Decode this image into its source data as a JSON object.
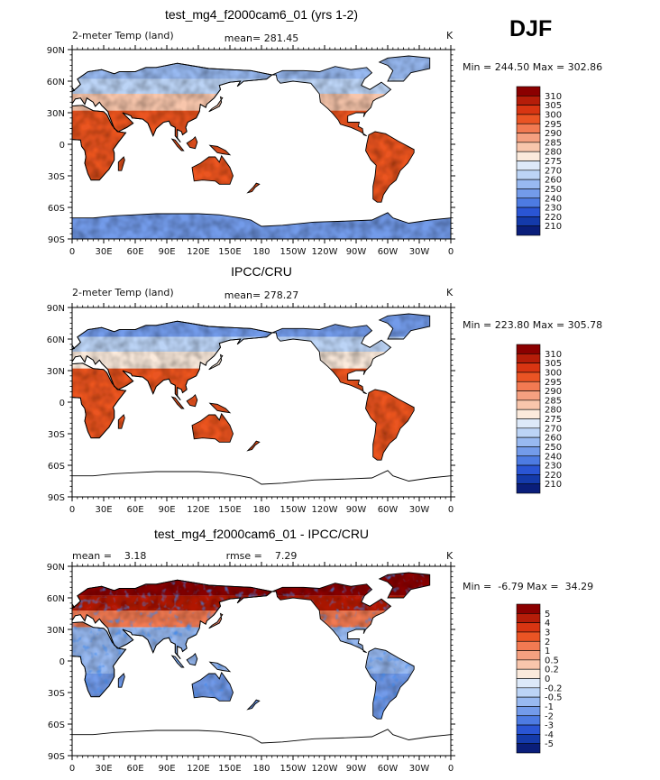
{
  "season": "DJF",
  "chart_data": [
    {
      "type": "heatmap",
      "title": "test_mg4_f2000cam6_01 (yrs 1-2)",
      "left_label": "2-meter Temp (land)",
      "center_label": "mean= 281.45",
      "right_label": "K",
      "stats_label": "Min = 244.50 Max = 302.86",
      "mean": 281.45,
      "min": 244.5,
      "max": 302.86,
      "units": "K",
      "x_ticks": [
        "0",
        "30E",
        "60E",
        "90E",
        "120E",
        "150E",
        "180",
        "150W",
        "120W",
        "90W",
        "60W",
        "30W",
        "0"
      ],
      "y_ticks": [
        "90N",
        "60N",
        "30N",
        "0",
        "30S",
        "60S",
        "90S"
      ],
      "xlim": [
        0,
        360
      ],
      "ylim": [
        -90,
        90
      ],
      "colorbar": {
        "labels": [
          "310",
          "305",
          "300",
          "295",
          "290",
          "285",
          "280",
          "275",
          "270",
          "260",
          "250",
          "240",
          "230",
          "220",
          "210"
        ],
        "colors": [
          "#8b0000",
          "#b51d09",
          "#d83512",
          "#ea5424",
          "#f27a52",
          "#f5a080",
          "#f8c6ac",
          "#fbeadc",
          "#dde9f9",
          "#bcd4f6",
          "#98b9f1",
          "#739bea",
          "#4d7be2",
          "#2a55d4",
          "#143aaa",
          "#0a1e7a"
        ]
      },
      "region_values": {
        "north_high": 252,
        "north_mid": 266,
        "north_sub": 280,
        "tropics": 298,
        "south_land": 295,
        "antarctica": 246
      }
    },
    {
      "type": "heatmap",
      "title": "IPCC/CRU",
      "left_label": "2-meter Temp (land)",
      "center_label": "mean= 278.27",
      "right_label": "K",
      "stats_label": "Min = 223.80 Max = 305.78",
      "mean": 278.27,
      "min": 223.8,
      "max": 305.78,
      "units": "K",
      "x_ticks": [
        "0",
        "30E",
        "60E",
        "90E",
        "120E",
        "150E",
        "180",
        "150W",
        "120W",
        "90W",
        "60W",
        "30W",
        "0"
      ],
      "y_ticks": [
        "90N",
        "60N",
        "30N",
        "0",
        "30S",
        "60S",
        "90S"
      ],
      "xlim": [
        0,
        360
      ],
      "ylim": [
        -90,
        90
      ],
      "colorbar": {
        "labels": [
          "310",
          "305",
          "300",
          "295",
          "290",
          "285",
          "280",
          "275",
          "270",
          "260",
          "250",
          "240",
          "230",
          "220",
          "210"
        ],
        "colors": [
          "#8b0000",
          "#b51d09",
          "#d83512",
          "#ea5424",
          "#f27a52",
          "#f5a080",
          "#f8c6ac",
          "#fbeadc",
          "#dde9f9",
          "#bcd4f6",
          "#98b9f1",
          "#739bea",
          "#4d7be2",
          "#2a55d4",
          "#143aaa",
          "#0a1e7a"
        ]
      },
      "region_values": {
        "north_high": 244,
        "north_mid": 260,
        "north_sub": 278,
        "tropics": 298,
        "south_land": 296,
        "antarctica": null
      }
    },
    {
      "type": "heatmap",
      "title": "test_mg4_f2000cam6_01 - IPCC/CRU",
      "left_label": "mean =    3.18",
      "center_label": "rmse =    7.29",
      "right_label": "K",
      "stats_label": "Min =  -6.79 Max =  34.29",
      "mean": 3.18,
      "rmse": 7.29,
      "min": -6.79,
      "max": 34.29,
      "units": "K",
      "x_ticks": [
        "0",
        "30E",
        "60E",
        "90E",
        "120E",
        "150E",
        "180",
        "150W",
        "120W",
        "90W",
        "60W",
        "30W",
        "0"
      ],
      "y_ticks": [
        "90N",
        "60N",
        "30N",
        "0",
        "30S",
        "60S",
        "90S"
      ],
      "xlim": [
        0,
        360
      ],
      "ylim": [
        -90,
        90
      ],
      "colorbar": {
        "labels": [
          "5",
          "4",
          "3",
          "2",
          "1",
          "0.5",
          "0.2",
          "0",
          "-0.2",
          "-0.5",
          "-1",
          "-2",
          "-3",
          "-4",
          "-5"
        ],
        "colors": [
          "#8b0000",
          "#b51d09",
          "#d83512",
          "#ea5424",
          "#f27a52",
          "#f5a080",
          "#f8c6ac",
          "#fbeadc",
          "#dde9f9",
          "#bcd4f6",
          "#98b9f1",
          "#739bea",
          "#4d7be2",
          "#2a55d4",
          "#143aaa",
          "#0a1e7a"
        ]
      },
      "region_values": {
        "north_high": 6,
        "north_mid": 4,
        "north_sub": 1,
        "tropics": -1,
        "south_land": -1.5,
        "antarctica": null
      }
    }
  ]
}
